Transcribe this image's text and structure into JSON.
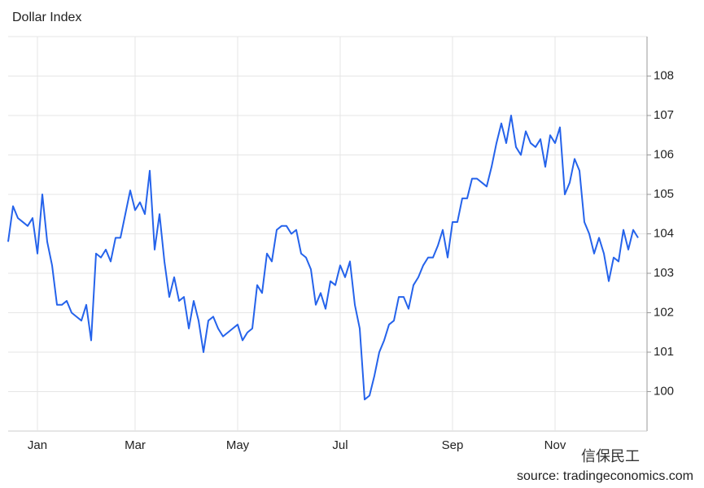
{
  "chart_data": {
    "type": "line",
    "title": "Dollar Index",
    "categories": [
      null,
      null,
      null,
      null,
      null,
      null,
      "Jan",
      null,
      null,
      null,
      null,
      null,
      null,
      null,
      null,
      null,
      null,
      null,
      null,
      null,
      null,
      null,
      null,
      null,
      null,
      null,
      "Mar",
      null,
      null,
      null,
      null,
      null,
      null,
      null,
      null,
      null,
      null,
      null,
      null,
      null,
      null,
      null,
      null,
      null,
      null,
      null,
      null,
      "May",
      null,
      null,
      null,
      null,
      null,
      null,
      null,
      null,
      null,
      null,
      null,
      null,
      null,
      null,
      null,
      null,
      null,
      null,
      null,
      null,
      "Jul",
      null,
      null,
      null,
      null,
      null,
      null,
      null,
      null,
      null,
      null,
      null,
      null,
      null,
      null,
      null,
      null,
      null,
      null,
      null,
      null,
      null,
      null,
      "Sep",
      null,
      null,
      null,
      null,
      null,
      null,
      null,
      null,
      null,
      null,
      null,
      null,
      null,
      null,
      null,
      null,
      null,
      null,
      null,
      null,
      "Nov",
      null,
      null,
      null,
      null,
      null,
      null,
      null,
      null,
      null,
      null,
      null,
      null,
      null,
      null,
      null,
      null,
      null
    ],
    "values": [
      103.8,
      104.7,
      104.4,
      104.3,
      104.2,
      104.4,
      103.5,
      105.0,
      103.8,
      103.2,
      102.2,
      102.2,
      102.3,
      102.0,
      101.9,
      101.8,
      102.2,
      101.3,
      103.5,
      103.4,
      103.6,
      103.3,
      103.9,
      103.9,
      104.5,
      105.1,
      104.6,
      104.8,
      104.5,
      105.6,
      103.6,
      104.5,
      103.3,
      102.4,
      102.9,
      102.3,
      102.4,
      101.6,
      102.3,
      101.8,
      101.0,
      101.8,
      101.9,
      101.6,
      101.4,
      101.5,
      101.6,
      101.7,
      101.3,
      101.5,
      101.6,
      102.7,
      102.5,
      103.5,
      103.3,
      104.1,
      104.2,
      104.2,
      104.0,
      104.1,
      103.5,
      103.4,
      103.1,
      102.2,
      102.5,
      102.1,
      102.8,
      102.7,
      103.2,
      102.9,
      103.3,
      102.2,
      101.6,
      99.8,
      99.9,
      100.4,
      101.0,
      101.3,
      101.7,
      101.8,
      102.4,
      102.4,
      102.1,
      102.7,
      102.9,
      103.2,
      103.4,
      103.4,
      103.7,
      104.1,
      103.4,
      104.3,
      104.3,
      104.9,
      104.9,
      105.4,
      105.4,
      105.3,
      105.2,
      105.7,
      106.3,
      106.8,
      106.3,
      107.0,
      106.2,
      106.0,
      106.6,
      106.3,
      106.2,
      106.4,
      105.7,
      106.5,
      106.3,
      106.7,
      105.0,
      105.3,
      105.9,
      105.6,
      104.3,
      104.0,
      103.5,
      103.9,
      103.5,
      102.8,
      103.4,
      103.3,
      104.1,
      103.6,
      104.1,
      103.9
    ],
    "color": "#2563eb",
    "ylim": [
      99,
      109
    ],
    "yticks": [
      100,
      101,
      102,
      103,
      104,
      105,
      106,
      107,
      108
    ],
    "grid": true,
    "source": "source: tradingeconomics.com",
    "watermark": "信保民工"
  }
}
